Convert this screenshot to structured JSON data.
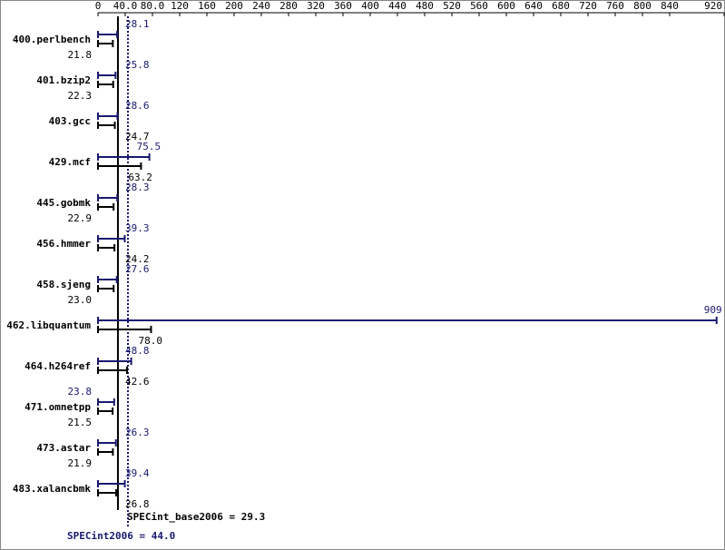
{
  "chart_data": {
    "type": "hbar",
    "categories": [
      "400.perlbench",
      "401.bzip2",
      "403.gcc",
      "429.mcf",
      "445.gobmk",
      "456.hmmer",
      "458.sjeng",
      "462.libquantum",
      "464.h264ref",
      "471.omnetpp",
      "473.astar",
      "483.xalancbmk"
    ],
    "series": [
      {
        "name": "SPECint2006",
        "color": "#191970",
        "values": [
          28.1,
          25.8,
          28.6,
          75.5,
          28.3,
          39.3,
          27.6,
          909,
          48.8,
          23.8,
          26.3,
          39.4
        ],
        "value_labels": [
          "28.1",
          "25.8",
          "28.6",
          "75.5",
          "28.3",
          "39.3",
          "27.6",
          "909",
          "48.8",
          "23.8",
          "26.3",
          "39.4"
        ]
      },
      {
        "name": "SPECint_base2006",
        "color": "#000000",
        "values": [
          21.8,
          22.3,
          24.7,
          63.2,
          22.9,
          24.2,
          23.0,
          78.0,
          42.6,
          21.5,
          21.9,
          26.8
        ],
        "value_labels": [
          "21.8",
          "22.3",
          "24.7",
          "63.2",
          "22.9",
          "24.2",
          "23.0",
          "78.0",
          "42.6",
          "21.5",
          "21.9",
          "26.8"
        ]
      }
    ],
    "xlim": [
      0,
      920
    ],
    "xticks": [
      0,
      {
        "value": 40,
        "label": "40.0"
      },
      {
        "value": 80,
        "label": "80.0"
      },
      120,
      160,
      200,
      240,
      280,
      320,
      360,
      400,
      440,
      480,
      520,
      560,
      600,
      640,
      680,
      720,
      760,
      800,
      840,
      920
    ],
    "reference_lines": [
      {
        "text": "SPECint_base2006 = 29.3",
        "value": 29.3,
        "color": "#000000",
        "style": "solid"
      },
      {
        "text": "SPECint2006 = 44.0",
        "value": 44.0,
        "color": "#191970",
        "style": "dotted"
      }
    ]
  }
}
